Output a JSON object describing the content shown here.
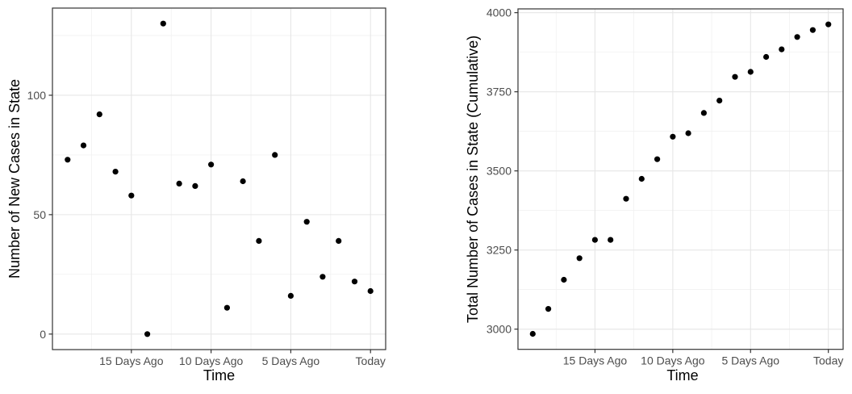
{
  "figure": {
    "background": "#ffffff",
    "description_colors": {
      "point_color": "#000000",
      "grid_major": "#e6e6e6",
      "grid_minor": "#efefef",
      "panel_border": "#333333",
      "tick_mark": "#333333",
      "tick_label": "#4d4d4d",
      "axis_title": "#000000"
    }
  },
  "chart_data": [
    {
      "type": "scatter",
      "title": "",
      "xlabel": "Time",
      "ylabel": "Number of New Cases in State",
      "grid": "on",
      "legend": "none",
      "x_ticks": [
        {
          "days_ago": 15,
          "label": "15 Days Ago"
        },
        {
          "days_ago": 10,
          "label": "10 Days Ago"
        },
        {
          "days_ago": 5,
          "label": "5 Days Ago"
        },
        {
          "days_ago": 0,
          "label": "Today"
        }
      ],
      "x_minor_days_ago": [
        17.5,
        12.5,
        7.5,
        2.5
      ],
      "y_ticks": [
        {
          "value": 0,
          "label": "0"
        },
        {
          "value": 50,
          "label": "50"
        },
        {
          "value": 100,
          "label": "100"
        }
      ],
      "y_minor_values": [
        25,
        75,
        125
      ],
      "x_days_ago": [
        19,
        18,
        17,
        16,
        15,
        14,
        13,
        12,
        11,
        10,
        9,
        8,
        7,
        6,
        5,
        4,
        3,
        2,
        1,
        0
      ],
      "values": [
        73,
        79,
        92,
        68,
        58,
        0,
        130,
        63,
        62,
        71,
        11,
        64,
        39,
        75,
        16,
        47,
        24,
        39,
        22,
        18
      ],
      "ylim": [
        0,
        130
      ],
      "x_domain_days_ago": [
        19.95,
        -0.95
      ],
      "y_domain": [
        -6.5,
        136.5
      ]
    },
    {
      "type": "scatter",
      "title": "",
      "xlabel": "Time",
      "ylabel": "Total Number of Cases in State (Cumulative)",
      "grid": "on",
      "legend": "none",
      "x_ticks": [
        {
          "days_ago": 15,
          "label": "15 Days Ago"
        },
        {
          "days_ago": 10,
          "label": "10 Days Ago"
        },
        {
          "days_ago": 5,
          "label": "5 Days Ago"
        },
        {
          "days_ago": 0,
          "label": "Today"
        }
      ],
      "x_minor_days_ago": [
        17.5,
        12.5,
        7.5,
        2.5
      ],
      "y_ticks": [
        {
          "value": 3000,
          "label": "3000"
        },
        {
          "value": 3250,
          "label": "3250"
        },
        {
          "value": 3500,
          "label": "3500"
        },
        {
          "value": 3750,
          "label": "3750"
        },
        {
          "value": 4000,
          "label": "4000"
        }
      ],
      "y_minor_values": [
        3125,
        3375,
        3625,
        3875
      ],
      "x_days_ago": [
        19,
        18,
        17,
        16,
        15,
        14,
        13,
        12,
        11,
        10,
        9,
        8,
        7,
        6,
        5,
        4,
        3,
        2,
        1,
        0
      ],
      "values": [
        2985,
        3064,
        3156,
        3224,
        3282,
        3282,
        3412,
        3475,
        3537,
        3608,
        3619,
        3683,
        3722,
        3797,
        3813,
        3860,
        3884,
        3923,
        3945,
        3963
      ],
      "ylim": [
        2985,
        3963
      ],
      "x_domain_days_ago": [
        19.95,
        -0.95
      ],
      "y_domain": [
        2936.1,
        4011.9
      ]
    }
  ]
}
